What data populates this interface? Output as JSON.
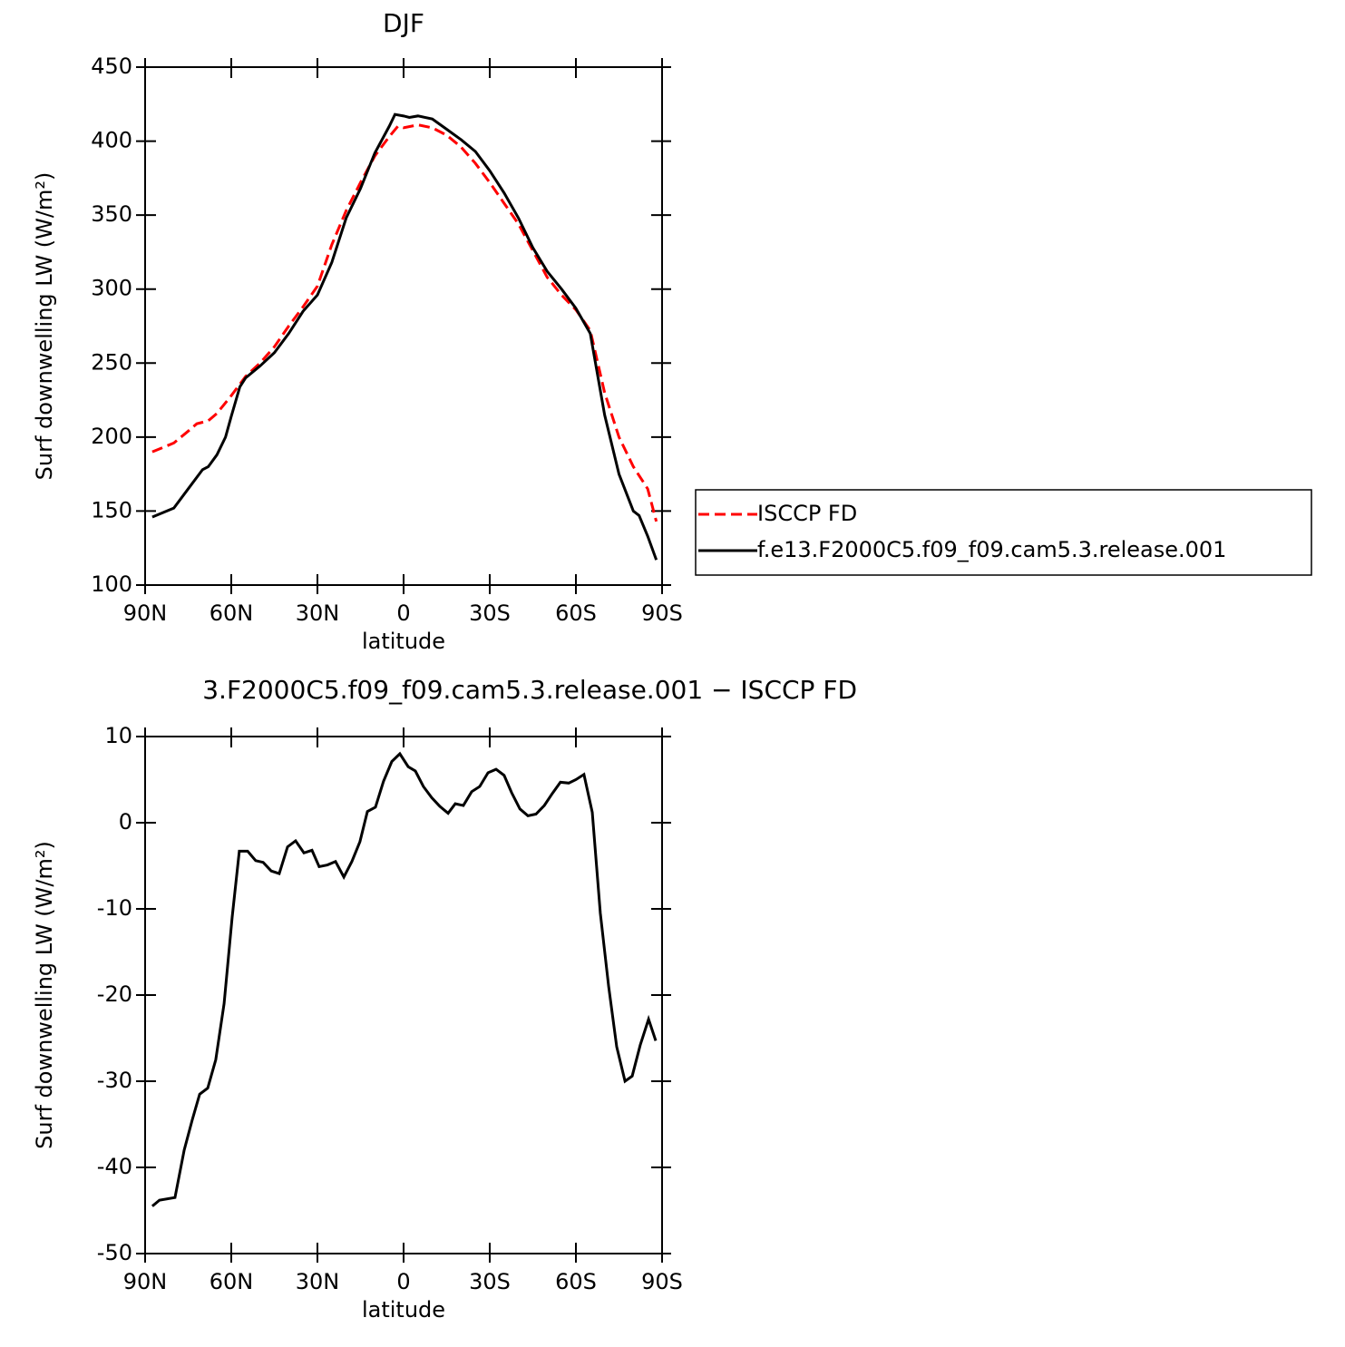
{
  "chart_data": [
    {
      "type": "line",
      "title": "DJF",
      "x_label": "latitude",
      "y_label": "Surf downwelling LW (W/m²)",
      "xlim": [
        90,
        -90
      ],
      "xticks": [
        {
          "value": 90,
          "label": "90N"
        },
        {
          "value": 60,
          "label": "60N"
        },
        {
          "value": 30,
          "label": "30N"
        },
        0,
        {
          "value": -30,
          "label": "30S"
        },
        {
          "value": -60,
          "label": "60S"
        },
        {
          "value": -90,
          "label": "90S"
        }
      ],
      "ylim": [
        100,
        450
      ],
      "yticks": [
        100,
        150,
        200,
        250,
        300,
        350,
        400,
        450
      ],
      "legend": "outside-right",
      "series": [
        {
          "name": "ISCCP FD",
          "color": "#ff0000",
          "dash": "dashed",
          "x": [
            87.5,
            80,
            75,
            72,
            68,
            65,
            60,
            55,
            50,
            45,
            40,
            35,
            30,
            25,
            20,
            15,
            10,
            5,
            2,
            0,
            -5,
            -10,
            -15,
            -20,
            -25,
            -30,
            -35,
            -40,
            -45,
            -50,
            -55,
            -60,
            -65,
            -70,
            -75,
            -80,
            -85,
            -88
          ],
          "values": [
            190,
            196,
            204,
            209,
            211,
            216,
            228,
            241,
            250,
            261,
            275,
            288,
            302,
            330,
            353,
            372,
            390,
            403,
            410,
            409,
            411,
            409,
            404,
            396,
            385,
            372,
            358,
            344,
            326,
            308,
            296,
            286,
            272,
            230,
            200,
            180,
            165,
            143
          ]
        },
        {
          "name": "f.e13.F2000C5.f09_f09.cam5.3.release.001",
          "color": "#000000",
          "dash": "solid",
          "x": [
            87.5,
            80,
            75,
            70,
            68,
            65,
            62,
            60,
            57,
            55,
            50,
            45,
            40,
            35,
            30,
            25,
            20,
            15,
            10,
            5,
            3,
            0,
            -2,
            -5,
            -10,
            -15,
            -20,
            -25,
            -30,
            -35,
            -40,
            -45,
            -50,
            -55,
            -60,
            -65,
            -70,
            -75,
            -80,
            -82,
            -85,
            -88
          ],
          "values": [
            146,
            152,
            165,
            178,
            180,
            188,
            200,
            214,
            234,
            240,
            248,
            257,
            270,
            285,
            296,
            318,
            348,
            368,
            392,
            410,
            418,
            417,
            416,
            417,
            415,
            408,
            401,
            393,
            380,
            365,
            348,
            328,
            312,
            300,
            287,
            270,
            215,
            175,
            150,
            147,
            133,
            117
          ]
        }
      ]
    },
    {
      "type": "line",
      "title": "3.F2000C5.f09_f09.cam5.3.release.001 − ISCCP FD",
      "x_label": "latitude",
      "y_label": "Surf downwelling LW (W/m²)",
      "xlim": [
        90,
        -90
      ],
      "xticks": [
        {
          "value": 90,
          "label": "90N"
        },
        {
          "value": 60,
          "label": "60N"
        },
        {
          "value": 30,
          "label": "30N"
        },
        0,
        {
          "value": -30,
          "label": "30S"
        },
        {
          "value": -60,
          "label": "60S"
        },
        {
          "value": -90,
          "label": "90S"
        }
      ],
      "ylim": [
        -50,
        10
      ],
      "yticks": [
        -50,
        -40,
        -30,
        -20,
        -10,
        0,
        10
      ],
      "series": [
        {
          "color": "#000000",
          "dash": "solid",
          "x": [
            87.5,
            85,
            79.6,
            76.4,
            73.6,
            71,
            68.2,
            65.4,
            62.5,
            59.7,
            57.2,
            54.3,
            51.5,
            48.9,
            46.1,
            43.3,
            40.4,
            37.6,
            34.7,
            31.9,
            29.4,
            26.5,
            23.7,
            20.8,
            18,
            15.2,
            12.6,
            9.8,
            7,
            4.1,
            1.3,
            -1.6,
            -4.1,
            -6.9,
            -9.8,
            -12.6,
            -15.5,
            -18,
            -20.8,
            -23.7,
            -26.5,
            -29.4,
            -32.2,
            -35,
            -37.6,
            -40.5,
            -43.3,
            -46.1,
            -49,
            -51.8,
            -54.6,
            -57.5,
            -60,
            -62.8,
            -65.7,
            -68.5,
            -71.4,
            -74.2,
            -77.1,
            -79.6,
            -82.4,
            -85.3,
            -87.8
          ],
          "values": [
            -44.5,
            -43.8,
            -43.5,
            -38,
            -34.5,
            -31.5,
            -30.8,
            -27.5,
            -21,
            -11,
            -3.3,
            -3.3,
            -4.4,
            -4.6,
            -5.6,
            -5.9,
            -2.8,
            -2.1,
            -3.5,
            -3.2,
            -5.1,
            -4.9,
            -4.5,
            -6.3,
            -4.5,
            -2.2,
            1.3,
            1.8,
            4.8,
            7.1,
            8.0,
            6.5,
            6.0,
            4.2,
            2.9,
            1.9,
            1.1,
            2.2,
            2.0,
            3.6,
            4.2,
            5.8,
            6.2,
            5.5,
            3.5,
            1.6,
            0.8,
            1.0,
            2.0,
            3.4,
            4.7,
            4.6,
            5.0,
            5.6,
            1.2,
            -10.5,
            -19,
            -26,
            -30,
            -29.4,
            -25.8,
            -22.8,
            -25.3
          ]
        }
      ]
    }
  ]
}
